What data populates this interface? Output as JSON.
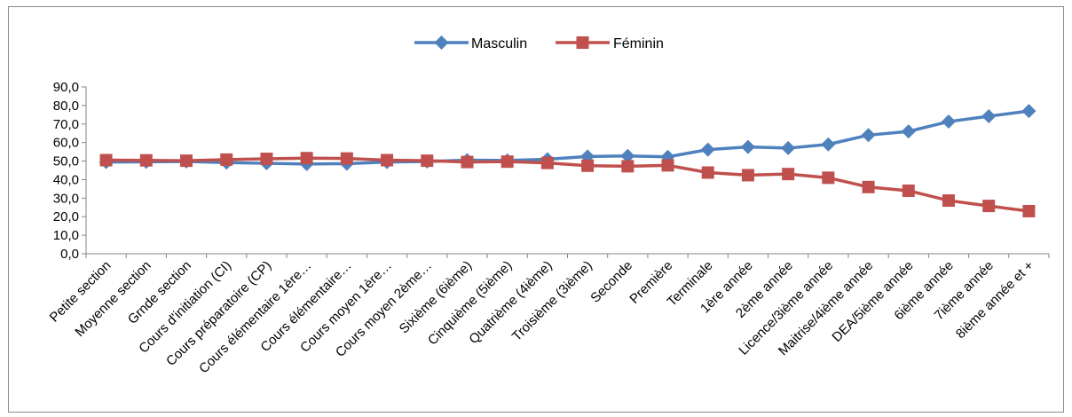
{
  "chart_data": {
    "type": "line",
    "categories": [
      "Petite section",
      "Moyenne section",
      "Grnde section",
      "Cours d'initiation (CI)",
      "Cours préparatoire (CP)",
      "Cours élémentaire 1ère…",
      "Cours élémentaire…",
      "Cours moyen 1ère…",
      "Cours moyen 2ème…",
      "Sixième (6ième)",
      "Cinquième (5ième)",
      "Quatrième (4ième)",
      "Troisième (3ième)",
      "Seconde",
      "Première",
      "Terminale",
      "1ère année",
      "2ème année",
      "Licence/3ième année",
      "Maitrise/4ième année",
      "DEA/5ième année",
      "6ième année",
      "7ième année",
      "8ième année et +"
    ],
    "series": [
      {
        "name": "Masculin",
        "color": "#4F81BD",
        "marker": "diamond",
        "values": [
          49.5,
          49.6,
          49.8,
          49.2,
          48.8,
          48.4,
          48.6,
          49.5,
          49.8,
          50.5,
          50.3,
          51.0,
          52.5,
          52.8,
          52.3,
          56.2,
          57.6,
          57.0,
          59.0,
          64.0,
          66.0,
          71.3,
          74.2,
          77.0
        ]
      },
      {
        "name": "Féminin",
        "color": "#C0504D",
        "marker": "square",
        "values": [
          50.5,
          50.4,
          50.2,
          50.8,
          51.2,
          51.6,
          51.4,
          50.5,
          50.2,
          49.5,
          49.7,
          49.0,
          47.5,
          47.2,
          47.7,
          43.8,
          42.4,
          43.0,
          41.0,
          36.0,
          34.0,
          28.7,
          25.8,
          23.0
        ]
      }
    ],
    "y_ticks": [
      "0,0",
      "10,0",
      "20,0",
      "30,0",
      "40,0",
      "50,0",
      "60,0",
      "70,0",
      "80,0",
      "90,0"
    ],
    "ylim": [
      0,
      90
    ],
    "legend_position": "top-center",
    "grid": false
  }
}
